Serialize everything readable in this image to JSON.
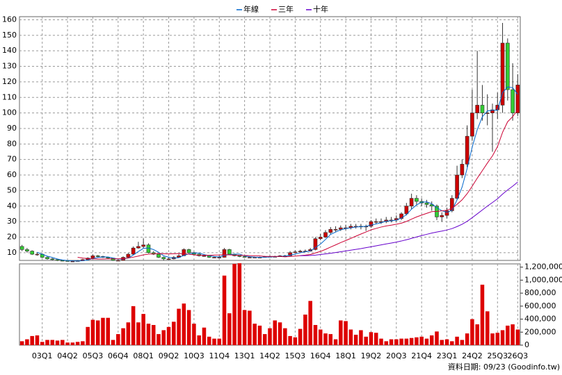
{
  "chart_data": [
    {
      "type": "candlestick",
      "open": [
        14,
        12,
        11,
        9,
        9,
        7,
        6,
        5.5,
        5,
        4.8,
        4.5,
        4.5,
        4.8,
        5.5,
        6.5,
        8,
        7.5,
        7,
        6.5,
        5,
        5,
        7,
        9,
        13,
        14,
        15,
        10,
        9,
        7,
        6,
        6,
        7,
        8,
        12,
        10,
        9,
        8,
        8,
        7,
        7,
        7,
        12,
        9,
        8,
        7.5,
        7,
        7,
        7,
        7,
        7.5,
        7.5,
        7.5,
        8,
        8,
        10,
        10.5,
        11,
        11,
        12,
        19,
        20,
        23,
        25,
        25,
        26,
        26,
        27,
        27,
        27,
        27,
        30,
        30,
        30,
        31,
        31,
        32,
        35,
        40,
        45,
        43,
        42,
        41,
        40,
        33,
        34,
        37,
        45,
        60,
        67,
        85,
        100,
        105,
        100,
        100,
        102,
        105,
        145,
        115,
        100
      ],
      "high": [
        15,
        13,
        11.5,
        10,
        9.5,
        7.5,
        6.5,
        6,
        5.3,
        5,
        4.9,
        5.2,
        6,
        7,
        8.8,
        8.5,
        8,
        7.3,
        6.8,
        5.6,
        7.6,
        9.8,
        14,
        17,
        19,
        16,
        11,
        9.5,
        7.5,
        7,
        7.8,
        9,
        12.8,
        12.5,
        10.5,
        9.5,
        8.8,
        8.3,
        7.6,
        8,
        13,
        12.5,
        9.4,
        8.3,
        7.8,
        7.5,
        7.4,
        7.4,
        7.9,
        8,
        8,
        8.4,
        8.6,
        11,
        11.5,
        11.8,
        12,
        13,
        20,
        22,
        24.5,
        26.5,
        27,
        27.5,
        28,
        28.5,
        28.5,
        28.5,
        28,
        31,
        32,
        32,
        33,
        33,
        34,
        36,
        42,
        48,
        47,
        45,
        44,
        43,
        41,
        36,
        39,
        47,
        66,
        70,
        92,
        115,
        140,
        118,
        112,
        106,
        113,
        158,
        148,
        132,
        125
      ],
      "low": [
        11,
        10,
        8.5,
        8,
        6.5,
        5.5,
        5,
        4.6,
        4.4,
        4.2,
        4.2,
        4.3,
        4.6,
        5.3,
        6.2,
        7,
        6.6,
        6,
        4.7,
        4.6,
        4.8,
        6.8,
        8.5,
        12.5,
        13,
        9.5,
        8.5,
        6.5,
        5,
        5.3,
        5.6,
        6.8,
        7.8,
        9.5,
        8.5,
        7.5,
        7.4,
        6.6,
        6.5,
        6.4,
        6.8,
        8.5,
        7.6,
        7.1,
        6.7,
        6.6,
        6.7,
        6.7,
        6.8,
        7.2,
        7.1,
        7.3,
        7.6,
        7.8,
        9.6,
        10.2,
        10.4,
        10.6,
        11.5,
        18,
        19.5,
        22,
        23.5,
        24,
        24.5,
        25,
        25.5,
        25,
        24,
        26,
        28.5,
        28.5,
        29,
        29.5,
        30,
        31,
        34,
        38,
        41,
        40,
        39,
        37,
        31,
        30,
        32,
        36,
        44,
        58,
        65,
        82,
        96,
        95,
        92,
        75,
        96,
        100,
        108,
        95,
        98
      ],
      "close": [
        12,
        11,
        9,
        9,
        7,
        6,
        5.5,
        5,
        4.8,
        4.5,
        4.5,
        4.8,
        5.5,
        6.5,
        8,
        7.5,
        7,
        6.5,
        5,
        5,
        7,
        9,
        13,
        14,
        15,
        10,
        9,
        7,
        6,
        6,
        7,
        8,
        12,
        10,
        9,
        8,
        8,
        7,
        7,
        7,
        12,
        9,
        8,
        7.5,
        7,
        7,
        7,
        7,
        7.5,
        7.5,
        7.5,
        8,
        8,
        10,
        10.5,
        11,
        11,
        12,
        19,
        20,
        23,
        25,
        25,
        26,
        26,
        27,
        27,
        27,
        27,
        30,
        30,
        30,
        31,
        31,
        32,
        35,
        40,
        45,
        43,
        42,
        41,
        40,
        33,
        34,
        37,
        45,
        60,
        67,
        85,
        100,
        105,
        100,
        100,
        102,
        105,
        145,
        115,
        100,
        118
      ],
      "up_color": "#cc0000",
      "down_color": "#33cc33",
      "series": [
        {
          "name": "年線",
          "color": "#0066cc",
          "values": [
            null,
            null,
            null,
            10.25,
            9,
            7.75,
            6.9,
            5.9,
            5.3,
            4.95,
            4.7,
            4.65,
            4.8,
            5.3,
            6.2,
            6.9,
            7.25,
            7.25,
            6.5,
            5.9,
            5.9,
            6.5,
            8.5,
            10.75,
            12.75,
            13,
            12,
            10.25,
            8,
            7,
            6.5,
            6.75,
            8.25,
            9.25,
            9.75,
            9.75,
            8.75,
            8,
            7.5,
            7.25,
            8.25,
            8.75,
            9,
            9.1,
            7.9,
            7.4,
            7.1,
            7,
            7.1,
            7.25,
            7.4,
            7.6,
            7.75,
            8.4,
            9.1,
            9.9,
            10.6,
            11.1,
            13.25,
            15.5,
            18.5,
            21.75,
            23.25,
            24.75,
            25.5,
            26,
            26.5,
            26.75,
            27,
            27.75,
            28.5,
            29.25,
            30.25,
            30.5,
            31,
            32.25,
            34.5,
            38,
            40.75,
            42.5,
            42.75,
            41.5,
            39,
            37,
            36,
            37.25,
            44,
            52.25,
            64.25,
            78,
            89.25,
            97.5,
            101.25,
            101.75,
            101.75,
            113,
            116.75,
            116.25,
            112
          ]
        },
        {
          "name": "三年",
          "color": "#cc0033",
          "values": [
            null,
            null,
            null,
            null,
            null,
            null,
            null,
            null,
            null,
            null,
            null,
            7,
            6.5,
            6.2,
            6,
            5.9,
            5.9,
            6,
            6,
            6,
            6.2,
            6.5,
            7.1,
            7.8,
            8.6,
            9,
            9.3,
            9.4,
            9.3,
            9.2,
            9.3,
            9.4,
            9.3,
            9,
            8.6,
            8.3,
            8.3,
            8.3,
            8.4,
            8.5,
            8.7,
            8.6,
            8.4,
            8.3,
            8.2,
            8.1,
            8,
            7.9,
            7.6,
            7.6,
            7.6,
            7.6,
            7.3,
            7.6,
            7.8,
            8.1,
            8.4,
            8.8,
            9.8,
            10.8,
            12.1,
            13.6,
            15,
            16.5,
            17.8,
            19.2,
            20.6,
            22,
            23.3,
            24.7,
            25.6,
            26.5,
            27.2,
            27.7,
            28.3,
            29,
            30.1,
            31.6,
            33,
            34.2,
            35.3,
            36.4,
            36.6,
            36.9,
            37.4,
            38.5,
            41.1,
            44,
            48,
            52.8,
            58,
            62.8,
            67.7,
            72.3,
            78.3,
            87.5,
            94.3,
            97.6,
            102
          ]
        },
        {
          "name": "十年",
          "color": "#6600cc",
          "values": [
            null,
            null,
            null,
            null,
            null,
            null,
            null,
            null,
            null,
            null,
            null,
            null,
            null,
            null,
            null,
            null,
            null,
            null,
            null,
            null,
            null,
            null,
            null,
            null,
            null,
            null,
            null,
            null,
            null,
            null,
            null,
            null,
            null,
            null,
            null,
            null,
            null,
            null,
            null,
            null,
            null,
            null,
            null,
            null,
            null,
            null,
            null,
            null,
            null,
            null,
            null,
            null,
            null,
            null,
            null,
            8,
            8.1,
            8.2,
            8.4,
            8.8,
            9.2,
            9.6,
            10.1,
            10.6,
            11.1,
            11.6,
            12.1,
            12.6,
            13.2,
            13.8,
            14.4,
            15,
            15.6,
            16.2,
            16.8,
            17.5,
            18.3,
            19.2,
            20.1,
            21,
            21.8,
            22.6,
            23.3,
            23.9,
            24.6,
            25.5,
            26.8,
            28.3,
            30.2,
            32.5,
            35,
            37.5,
            40,
            42.3,
            44.7,
            47.7,
            50.4,
            52.8,
            55.5
          ]
        }
      ],
      "ylim": [
        5,
        162
      ],
      "yticks": [
        10,
        20,
        30,
        40,
        50,
        60,
        70,
        80,
        90,
        100,
        110,
        120,
        130,
        140,
        150,
        160
      ],
      "grid": true
    },
    {
      "type": "bar",
      "categories": [
        null,
        null,
        null,
        null,
        "03Q1",
        null,
        null,
        null,
        null,
        "04Q2",
        null,
        null,
        null,
        null,
        "05Q3",
        null,
        null,
        null,
        null,
        "06Q4",
        null,
        null,
        null,
        null,
        "08Q1",
        null,
        null,
        null,
        null,
        "09Q2",
        null,
        null,
        null,
        null,
        "10Q3",
        null,
        null,
        null,
        null,
        "11Q4",
        null,
        null,
        null,
        null,
        "13Q1",
        null,
        null,
        null,
        null,
        "14Q2",
        null,
        null,
        null,
        null,
        "15Q3",
        null,
        null,
        null,
        null,
        "16Q4",
        null,
        null,
        null,
        null,
        "18Q1",
        null,
        null,
        null,
        null,
        "19Q2",
        null,
        null,
        null,
        null,
        "20Q3",
        null,
        null,
        null,
        null,
        "21Q4",
        null,
        null,
        null,
        null,
        "23Q1",
        null,
        null,
        null,
        null,
        "24Q2",
        null,
        null,
        null,
        null,
        "25Q3",
        null,
        null,
        null,
        "26Q3"
      ],
      "values": [
        60000,
        90000,
        140000,
        150000,
        50000,
        80000,
        80000,
        70000,
        80000,
        40000,
        40000,
        50000,
        60000,
        280000,
        390000,
        380000,
        420000,
        420000,
        80000,
        170000,
        260000,
        350000,
        600000,
        350000,
        480000,
        330000,
        310000,
        170000,
        230000,
        280000,
        360000,
        560000,
        640000,
        540000,
        330000,
        150000,
        270000,
        130000,
        100000,
        100000,
        1070000,
        490000,
        1250000,
        1260000,
        540000,
        530000,
        330000,
        300000,
        170000,
        260000,
        380000,
        350000,
        260000,
        140000,
        120000,
        250000,
        470000,
        680000,
        310000,
        240000,
        180000,
        170000,
        90000,
        380000,
        370000,
        240000,
        160000,
        230000,
        130000,
        200000,
        190000,
        100000,
        60000,
        90000,
        90000,
        100000,
        100000,
        110000,
        120000,
        130000,
        100000,
        150000,
        210000,
        80000,
        90000,
        60000,
        130000,
        80000,
        180000,
        400000,
        320000,
        930000,
        520000,
        180000,
        190000,
        230000,
        300000,
        320000,
        240000
      ],
      "color": "#dd0000",
      "ylim": [
        0,
        1250000
      ],
      "yticks": [
        0,
        {
          "value": 200000,
          "label": "200,000"
        },
        {
          "value": 400000,
          "label": "400,000"
        },
        {
          "value": 600000,
          "label": "600,000"
        },
        {
          "value": 800000,
          "label": "800,000"
        },
        {
          "value": 1000000,
          "label": "1,000,000"
        },
        {
          "value": 1200000,
          "label": "1,200,000"
        }
      ],
      "footnote": "資料日期: 09/23 (Goodinfo.tw)"
    }
  ]
}
